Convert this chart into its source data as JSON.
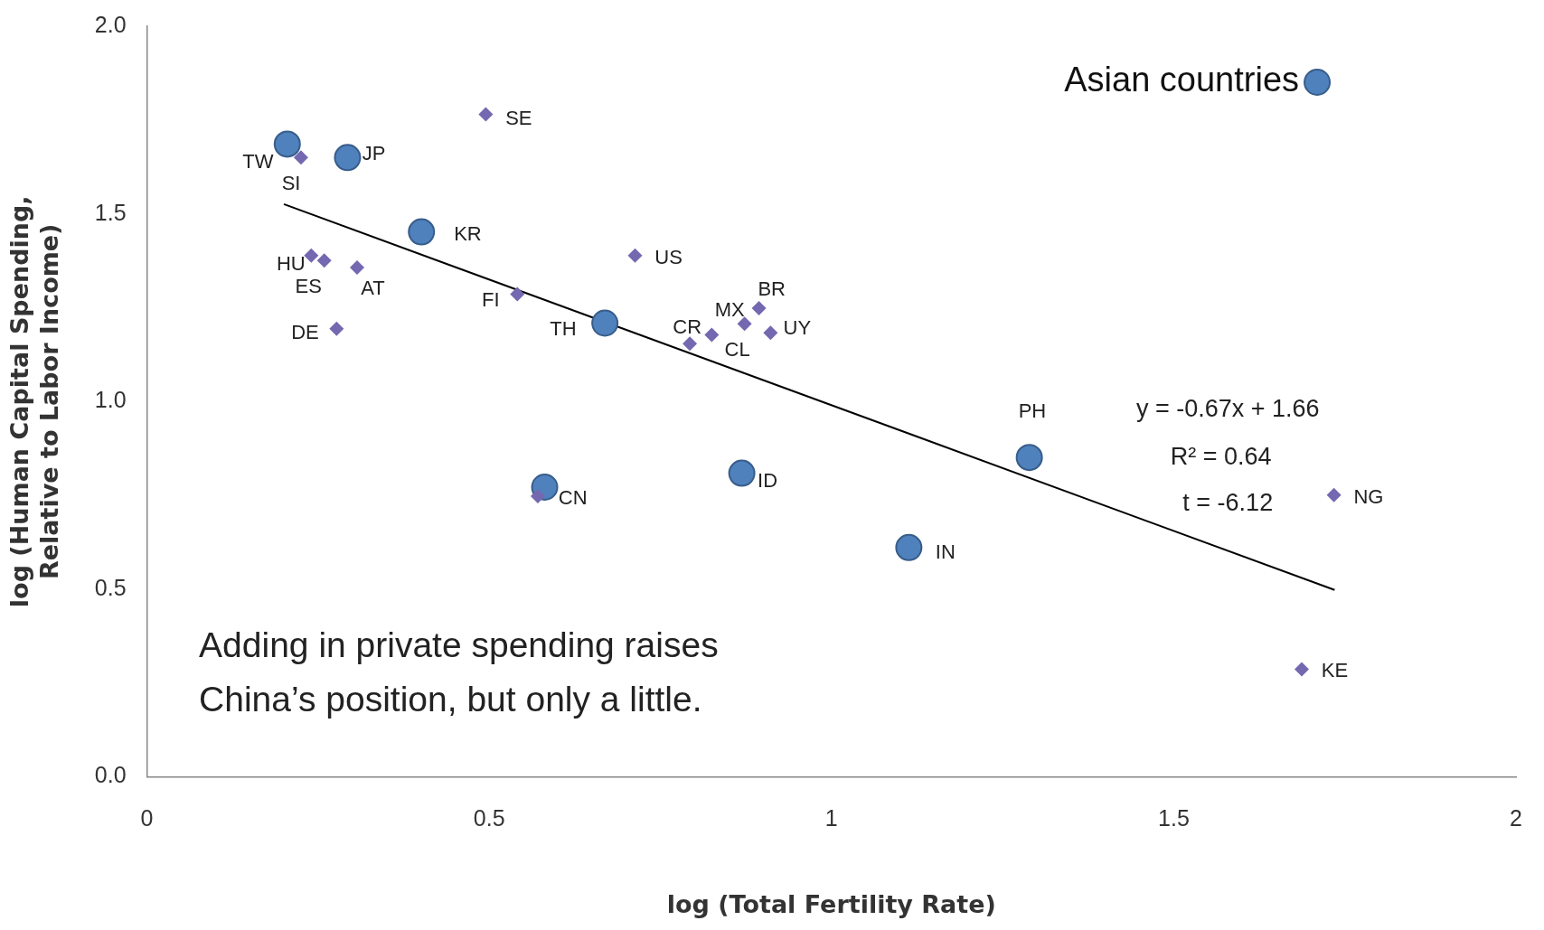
{
  "chart_data": {
    "type": "scatter",
    "xlabel": "log (Total Fertility Rate)",
    "ylabel": "log (Human Capital Spending,\nRelative to Labor Income)",
    "xlim": [
      0,
      2
    ],
    "xticks": [
      0,
      0.5,
      1,
      1.5,
      2
    ],
    "ylim": [
      0,
      2
    ],
    "yticks": [
      {
        "value": 0,
        "label": "0.0"
      },
      {
        "value": 0.5,
        "label": "0.5"
      },
      {
        "value": 1,
        "label": "1.0"
      },
      {
        "value": 1.5,
        "label": "1.5"
      },
      {
        "value": 2,
        "label": "2.0"
      }
    ],
    "grid": false,
    "legend": "top right",
    "series": [
      {
        "color": "#7468b0",
        "marker": "diamond",
        "x": [
          0.495,
          0.225,
          0.24,
          0.259,
          0.307,
          0.277,
          0.541,
          0.713,
          0.793,
          0.825,
          0.873,
          0.894,
          0.911,
          1.734,
          1.687,
          0.571
        ],
        "values": [
          1.765,
          1.65,
          1.389,
          1.376,
          1.357,
          1.194,
          1.286,
          1.389,
          1.154,
          1.178,
          1.207,
          1.249,
          1.183,
          0.751,
          0.287,
          0.748
        ]
      },
      {
        "name": "Asian countries",
        "color": "#4f81bd",
        "marker": "circle",
        "x": [
          0.205,
          0.293,
          0.401,
          0.669,
          0.581,
          0.869,
          1.113,
          1.289
        ],
        "values": [
          1.686,
          1.65,
          1.452,
          1.209,
          0.772,
          0.809,
          0.611,
          0.851
        ]
      },
      {
        "type": "line",
        "color": "#000000",
        "marker": "none",
        "x": [
          0.2,
          1.735
        ],
        "values": [
          1.526,
          0.498
        ]
      }
    ],
    "annotations": [
      {
        "text": "TW",
        "x": 0.205,
        "y": 1.686
      },
      {
        "text": "JP",
        "x": 0.293,
        "y": 1.65
      },
      {
        "text": "KR",
        "x": 0.401,
        "y": 1.452
      },
      {
        "text": "TH",
        "x": 0.669,
        "y": 1.209
      },
      {
        "text": "CN",
        "x": 0.581,
        "y": 0.772
      },
      {
        "text": "ID",
        "x": 0.869,
        "y": 0.809
      },
      {
        "text": "IN",
        "x": 1.113,
        "y": 0.611
      },
      {
        "text": "PH",
        "x": 1.289,
        "y": 0.851
      },
      {
        "text": "SE",
        "x": 0.495,
        "y": 1.765
      },
      {
        "text": "SI",
        "x": 0.225,
        "y": 1.65
      },
      {
        "text": "HU",
        "x": 0.24,
        "y": 1.389
      },
      {
        "text": "ES",
        "x": 0.259,
        "y": 1.376
      },
      {
        "text": "AT",
        "x": 0.307,
        "y": 1.357
      },
      {
        "text": "DE",
        "x": 0.277,
        "y": 1.194
      },
      {
        "text": "FI",
        "x": 0.541,
        "y": 1.286
      },
      {
        "text": "US",
        "x": 0.713,
        "y": 1.389
      },
      {
        "text": "CR",
        "x": 0.793,
        "y": 1.154
      },
      {
        "text": "CL",
        "x": 0.825,
        "y": 1.178
      },
      {
        "text": "MX",
        "x": 0.873,
        "y": 1.207
      },
      {
        "text": "BR",
        "x": 0.894,
        "y": 1.249
      },
      {
        "text": "UY",
        "x": 0.911,
        "y": 1.183
      },
      {
        "text": "NG",
        "x": 1.734,
        "y": 0.751
      },
      {
        "text": "KE",
        "x": 1.687,
        "y": 0.287
      },
      "y = -0.67x + 1.66",
      "R² = 0.64",
      "t = -6.12",
      "Adding in private spending raises\nChina’s position, but only a little."
    ]
  }
}
